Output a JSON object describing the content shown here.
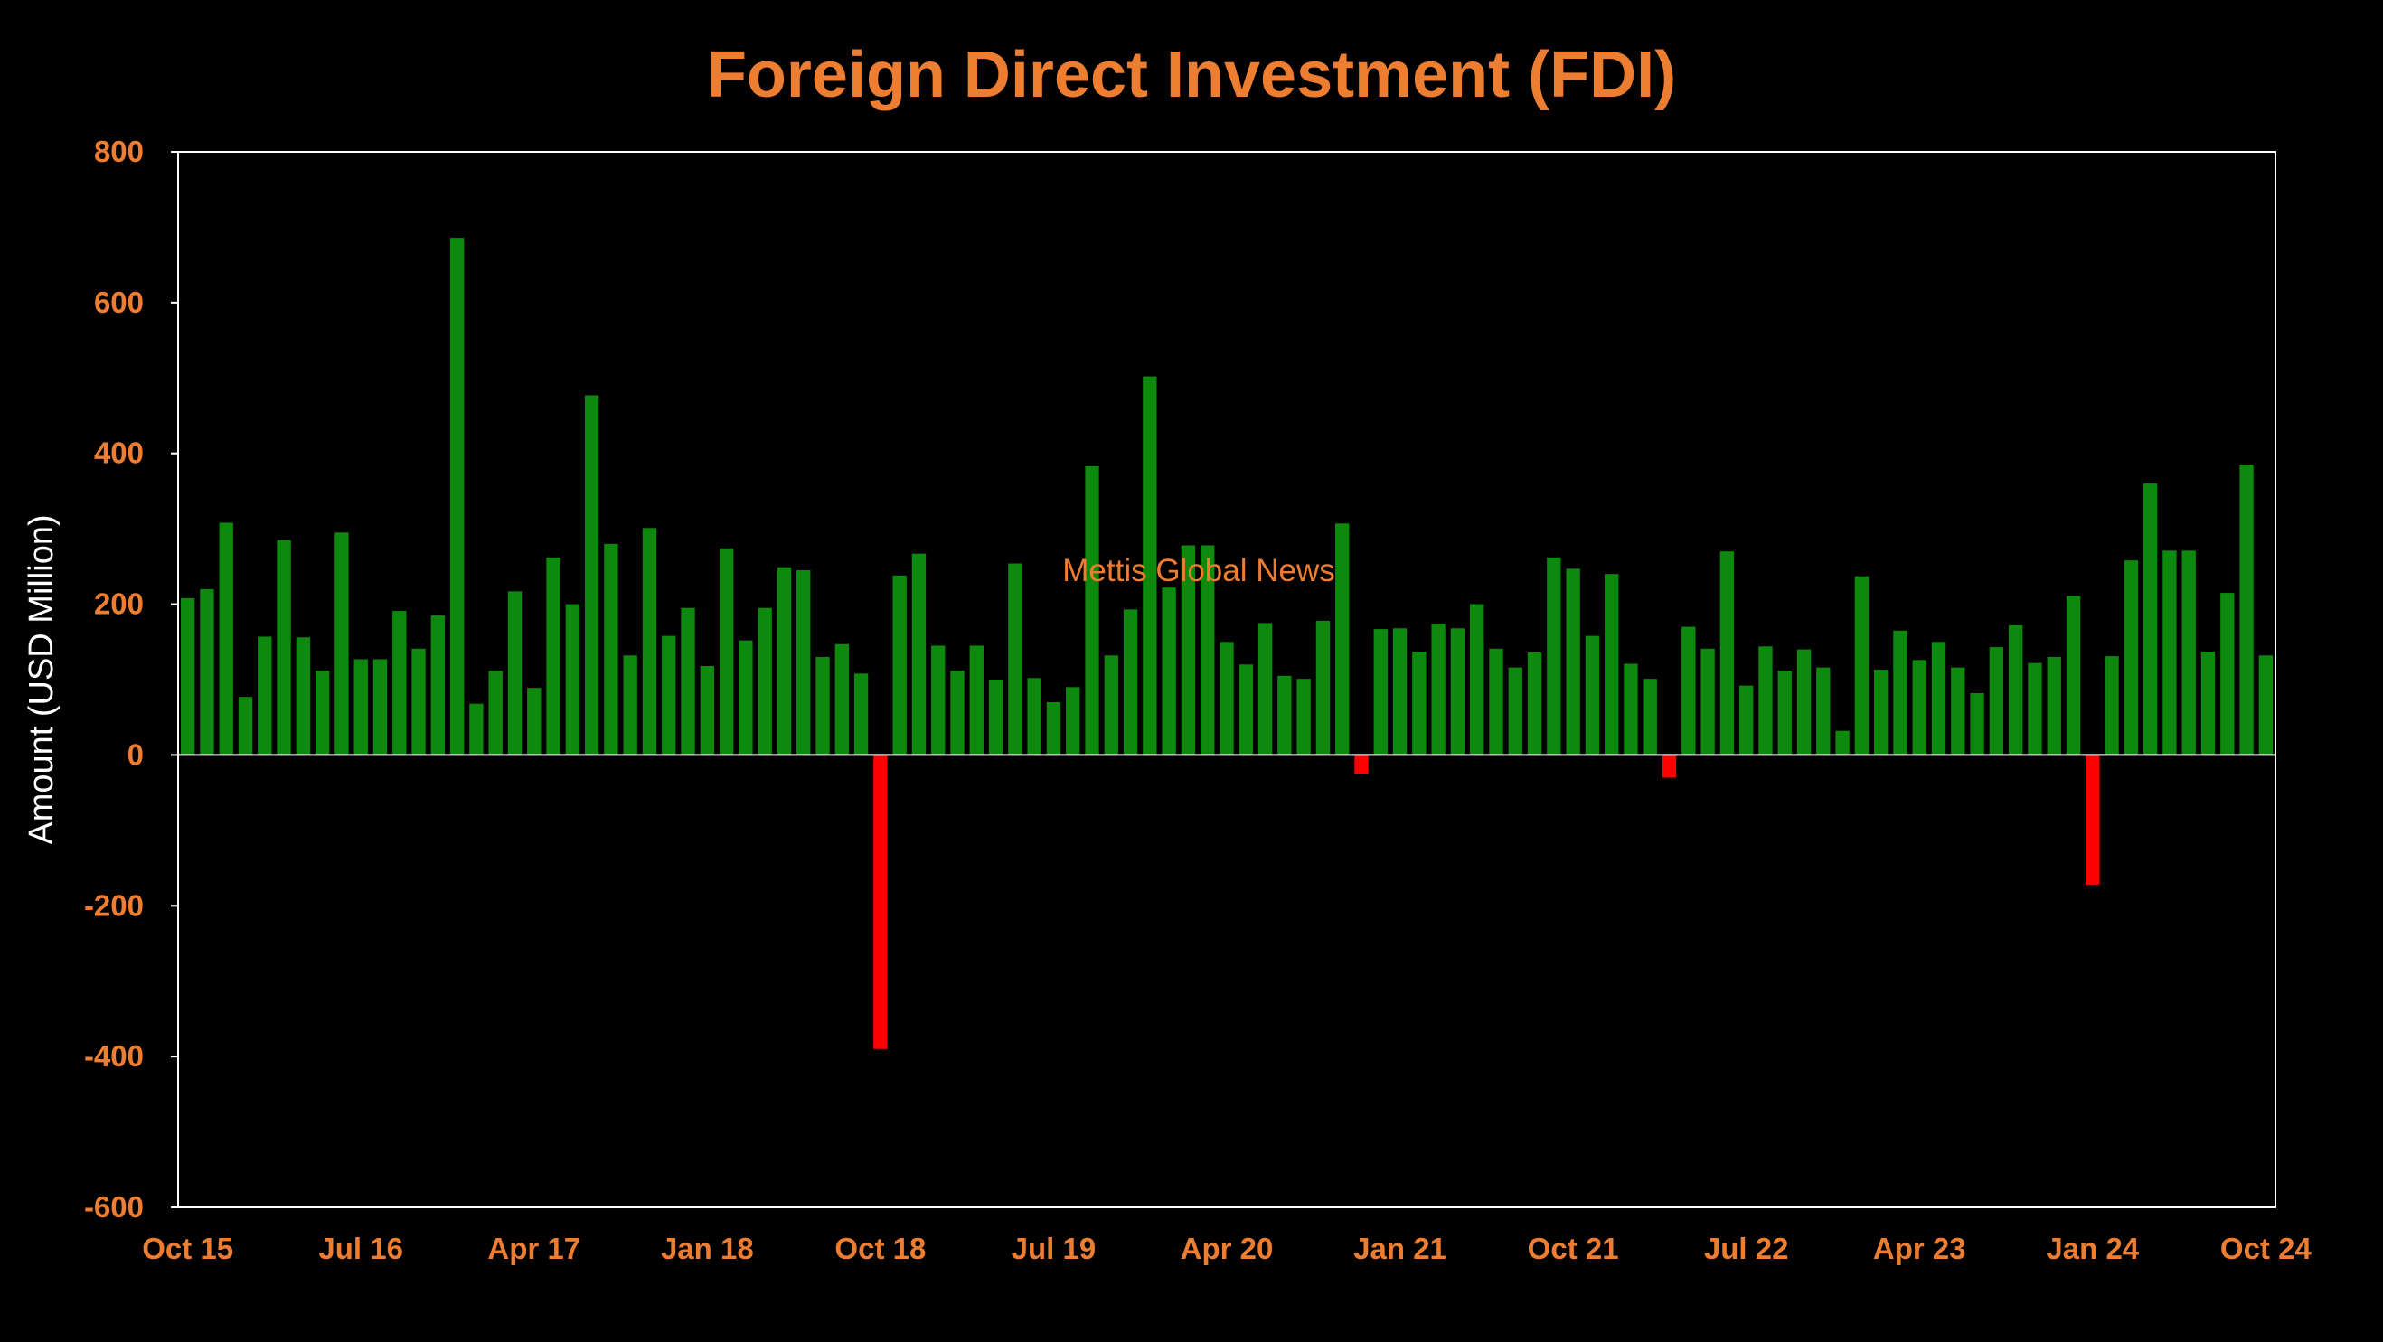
{
  "chart_data": {
    "type": "bar",
    "title": "Foreign Direct Investment (FDI)",
    "ylabel": "Amount (USD Million)",
    "xlabel": "",
    "watermark": "Mettis Global News",
    "ylim": [
      -600,
      800
    ],
    "yticks": [
      800,
      600,
      400,
      200,
      0,
      -200,
      -400,
      -600
    ],
    "x_tick_labels": [
      "Oct 15",
      "Jul 16",
      "Apr 17",
      "Jan 18",
      "Oct 18",
      "Jul 19",
      "Apr 20",
      "Jan 21",
      "Oct 21",
      "Jul 22",
      "Apr 23",
      "Jan 24",
      "Oct 24"
    ],
    "x_tick_every": 9,
    "grid": false,
    "colors": {
      "positive": "#0d8a0d",
      "negative": "#ff0000",
      "text": "#ed7d31",
      "axis": "#ffffff",
      "background": "#000000"
    },
    "categories": [
      "Oct 15",
      "Nov 15",
      "Dec 15",
      "Jan 16",
      "Feb 16",
      "Mar 16",
      "Apr 16",
      "May 16",
      "Jun 16",
      "Jul 16",
      "Aug 16",
      "Sep 16",
      "Oct 16",
      "Nov 16",
      "Dec 16",
      "Jan 17",
      "Feb 17",
      "Mar 17",
      "Apr 17",
      "May 17",
      "Jun 17",
      "Jul 17",
      "Aug 17",
      "Sep 17",
      "Oct 17",
      "Nov 17",
      "Dec 17",
      "Jan 18",
      "Feb 18",
      "Mar 18",
      "Apr 18",
      "May 18",
      "Jun 18",
      "Jul 18",
      "Aug 18",
      "Sep 18",
      "Oct 18",
      "Nov 18",
      "Dec 18",
      "Jan 19",
      "Feb 19",
      "Mar 19",
      "Apr 19",
      "May 19",
      "Jun 19",
      "Jul 19",
      "Aug 19",
      "Sep 19",
      "Oct 19",
      "Nov 19",
      "Dec 19",
      "Jan 20",
      "Feb 20",
      "Mar 20",
      "Apr 20",
      "May 20",
      "Jun 20",
      "Jul 20",
      "Aug 20",
      "Sep 20",
      "Oct 20",
      "Nov 20",
      "Dec 20",
      "Jan 21",
      "Feb 21",
      "Mar 21",
      "Apr 21",
      "May 21",
      "Jun 21",
      "Jul 21",
      "Aug 21",
      "Sep 21",
      "Oct 21",
      "Nov 21",
      "Dec 21",
      "Jan 22",
      "Feb 22",
      "Mar 22",
      "Apr 22",
      "May 22",
      "Jun 22",
      "Jul 22",
      "Aug 22",
      "Sep 22",
      "Oct 22",
      "Nov 22",
      "Dec 22",
      "Jan 23",
      "Feb 23",
      "Mar 23",
      "Apr 23",
      "May 23",
      "Jun 23",
      "Jul 23",
      "Aug 23",
      "Sep 23",
      "Oct 23",
      "Nov 23",
      "Dec 23",
      "Jan 24",
      "Feb 24",
      "Mar 24",
      "Apr 24",
      "May 24",
      "Jun 24",
      "Jul 24",
      "Aug 24",
      "Sep 24",
      "Oct 24"
    ],
    "values": [
      208,
      220,
      308,
      77,
      157,
      285,
      156,
      112,
      295,
      127,
      127,
      191,
      141,
      185,
      686,
      68,
      112,
      217,
      89,
      262,
      200,
      477,
      280,
      132,
      301,
      158,
      195,
      118,
      274,
      152,
      195,
      249,
      245,
      130,
      147,
      108,
      -390,
      238,
      267,
      145,
      112,
      145,
      100,
      254,
      102,
      70,
      90,
      383,
      132,
      193,
      502,
      222,
      278,
      278,
      150,
      120,
      175,
      105,
      101,
      178,
      307,
      -25,
      167,
      168,
      137,
      174,
      168,
      200,
      141,
      116,
      136,
      262,
      247,
      158,
      240,
      121,
      101,
      -30,
      170,
      141,
      270,
      92,
      144,
      112,
      140,
      116,
      32,
      237,
      113,
      165,
      126,
      150,
      116,
      82,
      143,
      172,
      122,
      130,
      211,
      -172,
      131,
      258,
      360,
      271,
      271,
      137,
      215,
      385,
      132
    ]
  }
}
